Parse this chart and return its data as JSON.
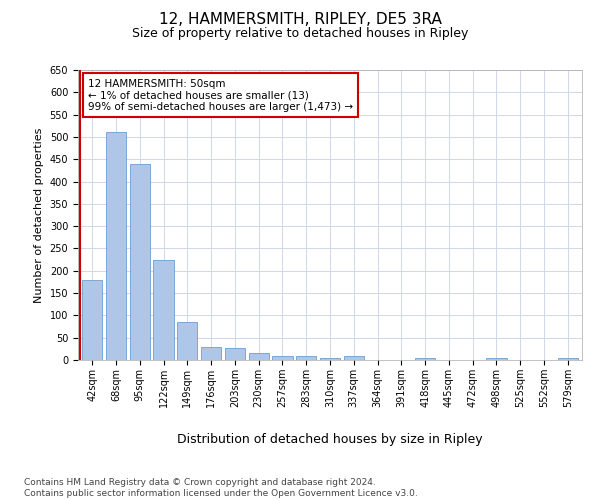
{
  "title1": "12, HAMMERSMITH, RIPLEY, DE5 3RA",
  "title2": "Size of property relative to detached houses in Ripley",
  "xlabel": "Distribution of detached houses by size in Ripley",
  "ylabel": "Number of detached properties",
  "categories": [
    "42sqm",
    "68sqm",
    "95sqm",
    "122sqm",
    "149sqm",
    "176sqm",
    "203sqm",
    "230sqm",
    "257sqm",
    "283sqm",
    "310sqm",
    "337sqm",
    "364sqm",
    "391sqm",
    "418sqm",
    "445sqm",
    "472sqm",
    "498sqm",
    "525sqm",
    "552sqm",
    "579sqm"
  ],
  "values": [
    180,
    510,
    440,
    225,
    85,
    30,
    28,
    15,
    10,
    8,
    5,
    10,
    0,
    0,
    5,
    0,
    0,
    5,
    0,
    0,
    5
  ],
  "bar_color": "#aec6e8",
  "bar_edge_color": "#5b8fc9",
  "highlight_color": "#cc0000",
  "annotation_text": "12 HAMMERSMITH: 50sqm\n← 1% of detached houses are smaller (13)\n99% of semi-detached houses are larger (1,473) →",
  "annotation_box_color": "#ffffff",
  "annotation_box_edge": "#cc0000",
  "ylim": [
    0,
    650
  ],
  "yticks": [
    0,
    50,
    100,
    150,
    200,
    250,
    300,
    350,
    400,
    450,
    500,
    550,
    600,
    650
  ],
  "background_color": "#ffffff",
  "grid_color": "#d0d8e8",
  "footer": "Contains HM Land Registry data © Crown copyright and database right 2024.\nContains public sector information licensed under the Open Government Licence v3.0.",
  "title1_fontsize": 11,
  "title2_fontsize": 9,
  "xlabel_fontsize": 9,
  "ylabel_fontsize": 8,
  "tick_fontsize": 7,
  "annotation_fontsize": 7.5,
  "footer_fontsize": 6.5
}
